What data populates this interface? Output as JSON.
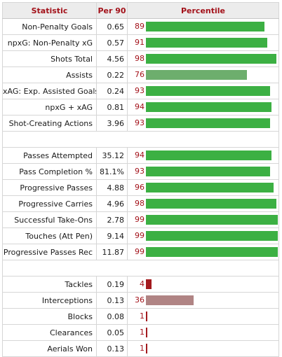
{
  "headers": {
    "statistic": "Statistic",
    "per90": "Per 90",
    "percentile": "Percentile"
  },
  "colors": {
    "high": "#3cb043",
    "mid": "#6dae6d",
    "low_mid": "#b08484",
    "low": "#a31a1e"
  },
  "chart_data": {
    "type": "bar",
    "ylim": [
      0,
      100
    ],
    "groups": [
      {
        "rows": [
          {
            "stat": "Non-Penalty Goals",
            "per90": "0.65",
            "percentile": 89
          },
          {
            "stat": "npxG: Non-Penalty xG",
            "per90": "0.57",
            "percentile": 91
          },
          {
            "stat": "Shots Total",
            "per90": "4.56",
            "percentile": 98
          },
          {
            "stat": "Assists",
            "per90": "0.22",
            "percentile": 76
          },
          {
            "stat": "xAG: Exp. Assisted Goals",
            "per90": "0.24",
            "percentile": 93
          },
          {
            "stat": "npxG + xAG",
            "per90": "0.81",
            "percentile": 94
          },
          {
            "stat": "Shot-Creating Actions",
            "per90": "3.96",
            "percentile": 93
          }
        ]
      },
      {
        "rows": [
          {
            "stat": "Passes Attempted",
            "per90": "35.12",
            "percentile": 94
          },
          {
            "stat": "Pass Completion %",
            "per90": "81.1%",
            "percentile": 93
          },
          {
            "stat": "Progressive Passes",
            "per90": "4.88",
            "percentile": 96
          },
          {
            "stat": "Progressive Carries",
            "per90": "4.96",
            "percentile": 98
          },
          {
            "stat": "Successful Take-Ons",
            "per90": "2.78",
            "percentile": 99
          },
          {
            "stat": "Touches (Att Pen)",
            "per90": "9.14",
            "percentile": 99
          },
          {
            "stat": "Progressive Passes Rec",
            "per90": "11.87",
            "percentile": 99
          }
        ]
      },
      {
        "rows": [
          {
            "stat": "Tackles",
            "per90": "0.19",
            "percentile": 4
          },
          {
            "stat": "Interceptions",
            "per90": "0.13",
            "percentile": 36
          },
          {
            "stat": "Blocks",
            "per90": "0.08",
            "percentile": 1
          },
          {
            "stat": "Clearances",
            "per90": "0.05",
            "percentile": 1
          },
          {
            "stat": "Aerials Won",
            "per90": "0.13",
            "percentile": 1
          }
        ]
      }
    ]
  }
}
